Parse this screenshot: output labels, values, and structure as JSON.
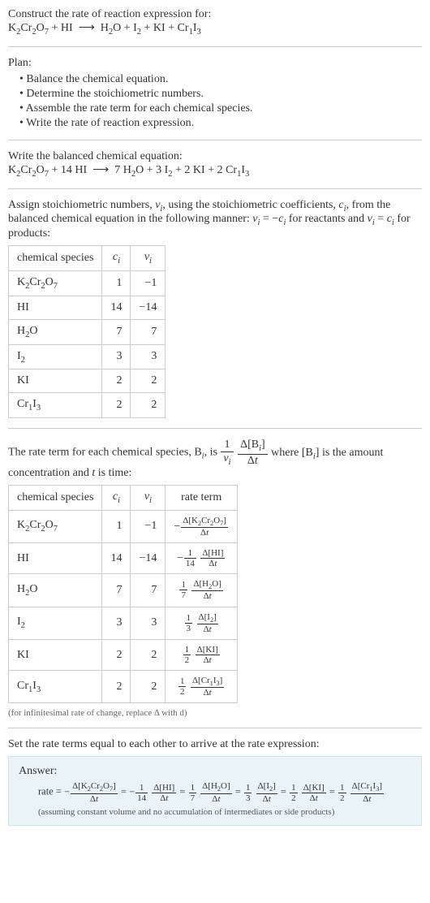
{
  "header": {
    "line1": "Construct the rate of reaction expression for:",
    "equation_html": "K<sub>2</sub>Cr<sub>2</sub>O<sub>7</sub> + HI &nbsp;⟶&nbsp; H<sub>2</sub>O + I<sub>2</sub> + KI + Cr<sub>1</sub>I<sub>3</sub>"
  },
  "plan": {
    "title": "Plan:",
    "items": [
      "Balance the chemical equation.",
      "Determine the stoichiometric numbers.",
      "Assemble the rate term for each chemical species.",
      "Write the rate of reaction expression."
    ]
  },
  "balanced": {
    "title": "Write the balanced chemical equation:",
    "equation_html": "K<sub>2</sub>Cr<sub>2</sub>O<sub>7</sub> + 14 HI &nbsp;⟶&nbsp; 7 H<sub>2</sub>O + 3 I<sub>2</sub> + 2 KI + 2 Cr<sub>1</sub>I<sub>3</sub>"
  },
  "stoich_text_html": "Assign stoichiometric numbers, <i>ν<sub>i</sub></i>, using the stoichiometric coefficients, <i>c<sub>i</sub></i>, from the balanced chemical equation in the following manner: <i>ν<sub>i</sub></i> = −<i>c<sub>i</sub></i> for reactants and <i>ν<sub>i</sub></i> = <i>c<sub>i</sub></i> for products:",
  "table1": {
    "headers": [
      "chemical species",
      "c_i",
      "ν_i"
    ],
    "headers_html": [
      "chemical species",
      "<i>c<sub>i</sub></i>",
      "<i>ν<sub>i</sub></i>"
    ],
    "rows": [
      {
        "sp_html": "K<sub>2</sub>Cr<sub>2</sub>O<sub>7</sub>",
        "c": "1",
        "nu": "−1"
      },
      {
        "sp_html": "HI",
        "c": "14",
        "nu": "−14"
      },
      {
        "sp_html": "H<sub>2</sub>O",
        "c": "7",
        "nu": "7"
      },
      {
        "sp_html": "I<sub>2</sub>",
        "c": "3",
        "nu": "3"
      },
      {
        "sp_html": "KI",
        "c": "2",
        "nu": "2"
      },
      {
        "sp_html": "Cr<sub>1</sub>I<sub>3</sub>",
        "c": "2",
        "nu": "2"
      }
    ],
    "col_align": [
      "left",
      "right",
      "right"
    ]
  },
  "rate_term_text_pre": "The rate term for each chemical species, B",
  "rate_term_text_mid": ", is ",
  "rate_term_text_post_html": " where [B<sub><i>i</i></sub>] is the amount concentration and <i>t</i> is time:",
  "rate_term_frac1": {
    "num": "1",
    "den_html": "<i>ν<sub>i</sub></i>"
  },
  "rate_term_frac2": {
    "num_html": "Δ[B<sub><i>i</i></sub>]",
    "den_html": "Δ<i>t</i>"
  },
  "table2": {
    "headers_html": [
      "chemical species",
      "<i>c<sub>i</sub></i>",
      "<i>ν<sub>i</sub></i>",
      "rate term"
    ],
    "rows": [
      {
        "sp_html": "K<sub>2</sub>Cr<sub>2</sub>O<sub>7</sub>",
        "c": "1",
        "nu": "−1",
        "rt_prefix": "−",
        "rt_f1_num": "",
        "rt_f1_den": "",
        "rt_f2_num_html": "Δ[K<sub>2</sub>Cr<sub>2</sub>O<sub>7</sub>]",
        "rt_f2_den_html": "Δ<i>t</i>"
      },
      {
        "sp_html": "HI",
        "c": "14",
        "nu": "−14",
        "rt_prefix": "−",
        "rt_f1_num": "1",
        "rt_f1_den": "14",
        "rt_f2_num_html": "Δ[HI]",
        "rt_f2_den_html": "Δ<i>t</i>"
      },
      {
        "sp_html": "H<sub>2</sub>O",
        "c": "7",
        "nu": "7",
        "rt_prefix": "",
        "rt_f1_num": "1",
        "rt_f1_den": "7",
        "rt_f2_num_html": "Δ[H<sub>2</sub>O]",
        "rt_f2_den_html": "Δ<i>t</i>"
      },
      {
        "sp_html": "I<sub>2</sub>",
        "c": "3",
        "nu": "3",
        "rt_prefix": "",
        "rt_f1_num": "1",
        "rt_f1_den": "3",
        "rt_f2_num_html": "Δ[I<sub>2</sub>]",
        "rt_f2_den_html": "Δ<i>t</i>"
      },
      {
        "sp_html": "KI",
        "c": "2",
        "nu": "2",
        "rt_prefix": "",
        "rt_f1_num": "1",
        "rt_f1_den": "2",
        "rt_f2_num_html": "Δ[KI]",
        "rt_f2_den_html": "Δ<i>t</i>"
      },
      {
        "sp_html": "Cr<sub>1</sub>I<sub>3</sub>",
        "c": "2",
        "nu": "2",
        "rt_prefix": "",
        "rt_f1_num": "1",
        "rt_f1_den": "2",
        "rt_f2_num_html": "Δ[Cr<sub>1</sub>I<sub>3</sub>]",
        "rt_f2_den_html": "Δ<i>t</i>"
      }
    ]
  },
  "table2_note": "(for infinitesimal rate of change, replace Δ with d)",
  "final_text": "Set the rate terms equal to each other to arrive at the rate expression:",
  "answer": {
    "label": "Answer:",
    "prefix": "rate = ",
    "terms": [
      {
        "sign": "−",
        "f1_num": "",
        "f1_den": "",
        "f2_num_html": "Δ[K<sub>2</sub>Cr<sub>2</sub>O<sub>7</sub>]",
        "f2_den_html": "Δ<i>t</i>"
      },
      {
        "sign": "−",
        "f1_num": "1",
        "f1_den": "14",
        "f2_num_html": "Δ[HI]",
        "f2_den_html": "Δ<i>t</i>"
      },
      {
        "sign": "",
        "f1_num": "1",
        "f1_den": "7",
        "f2_num_html": "Δ[H<sub>2</sub>O]",
        "f2_den_html": "Δ<i>t</i>"
      },
      {
        "sign": "",
        "f1_num": "1",
        "f1_den": "3",
        "f2_num_html": "Δ[I<sub>2</sub>]",
        "f2_den_html": "Δ<i>t</i>"
      },
      {
        "sign": "",
        "f1_num": "1",
        "f1_den": "2",
        "f2_num_html": "Δ[KI]",
        "f2_den_html": "Δ<i>t</i>"
      },
      {
        "sign": "",
        "f1_num": "1",
        "f1_den": "2",
        "f2_num_html": "Δ[Cr<sub>1</sub>I<sub>3</sub>]",
        "f2_den_html": "Δ<i>t</i>"
      }
    ],
    "footnote": "(assuming constant volume and no accumulation of intermediates or side products)"
  },
  "colors": {
    "answer_bg": "#eaf4f7",
    "answer_border": "#cde5ec",
    "hr": "#cccccc",
    "text": "#333333"
  }
}
